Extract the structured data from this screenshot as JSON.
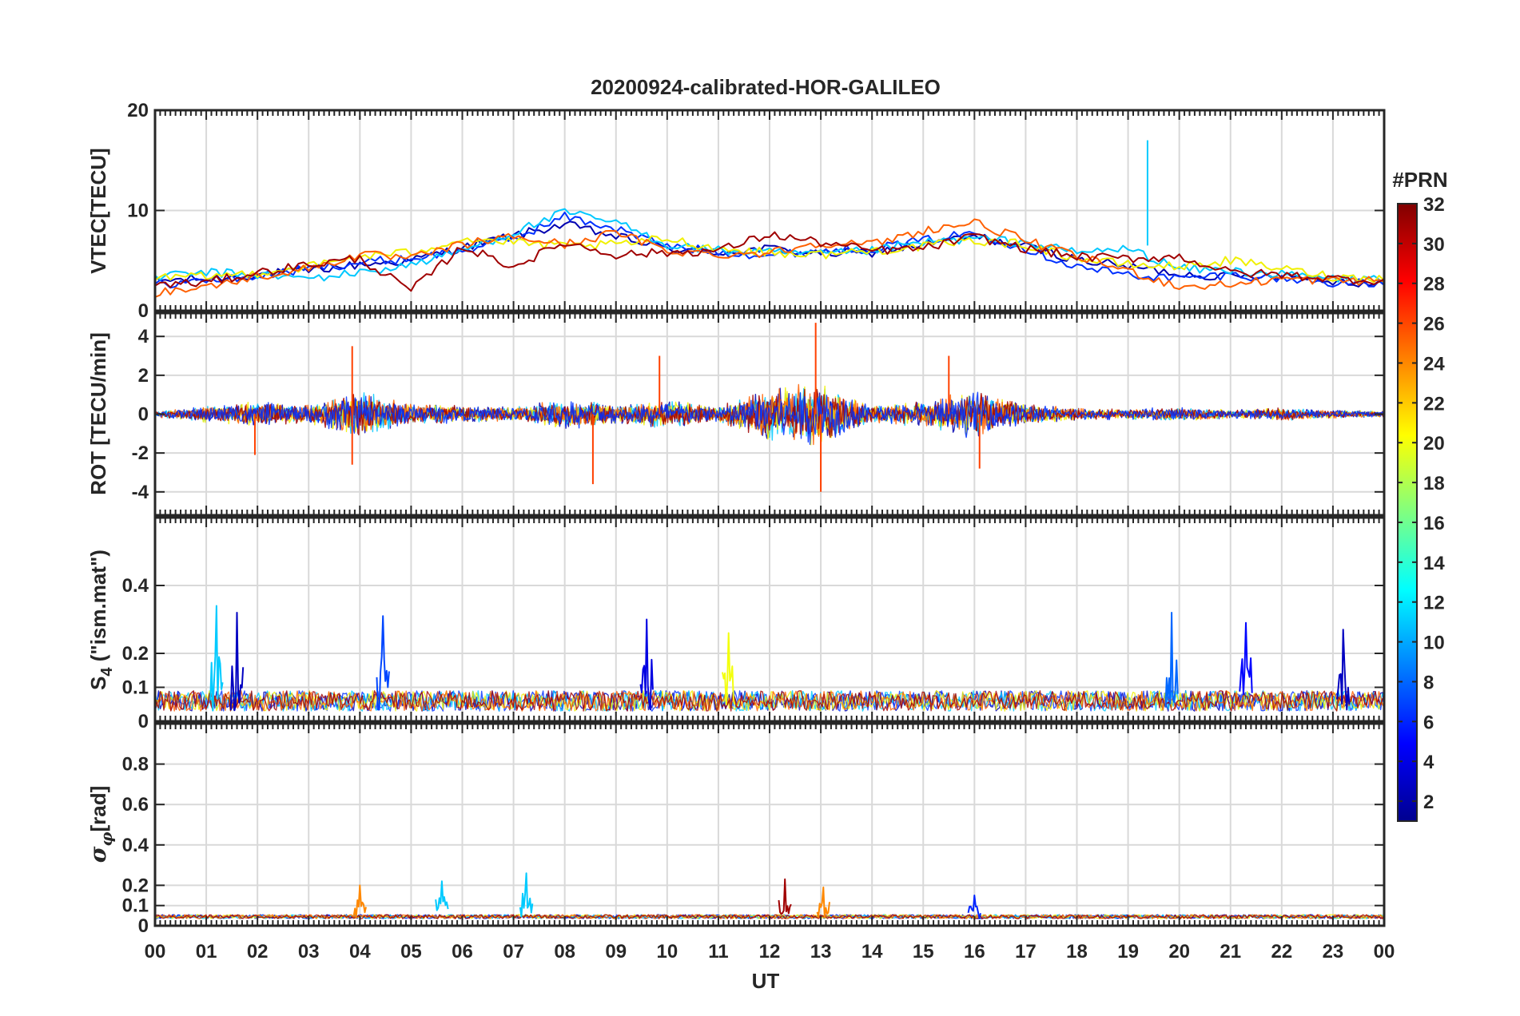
{
  "chart_data": {
    "type": "line",
    "title": "20200924-calibrated-HOR-GALILEO",
    "xlabel": "UT",
    "x_tick_labels": [
      "00",
      "01",
      "02",
      "03",
      "04",
      "05",
      "06",
      "07",
      "08",
      "09",
      "10",
      "11",
      "12",
      "13",
      "14",
      "15",
      "16",
      "17",
      "18",
      "19",
      "20",
      "21",
      "22",
      "23",
      "00"
    ],
    "xlim": [
      0,
      24
    ],
    "grid": true,
    "colorbar": {
      "title": "#PRN",
      "range": [
        1,
        32
      ],
      "tick_labels": [
        "2",
        "4",
        "6",
        "8",
        "10",
        "12",
        "14",
        "16",
        "18",
        "20",
        "22",
        "24",
        "26",
        "28",
        "30",
        "32"
      ],
      "colormap": "jet"
    },
    "panels": [
      {
        "ylabel": "VTEC[TECU]",
        "ylim": [
          0,
          20
        ],
        "yticks": [
          0,
          10,
          20
        ],
        "ytick_labels": [
          "0",
          "10",
          "20"
        ],
        "series": [
          {
            "prn": 2,
            "color": "#0000b0",
            "x": [
              0,
              1,
              2,
              3,
              4,
              5,
              6,
              7,
              8,
              9,
              10,
              11,
              12,
              13,
              14,
              15,
              16,
              17,
              18,
              19,
              20,
              21,
              22,
              23,
              24
            ],
            "y": [
              3.0,
              3.2,
              3.6,
              4.0,
              4.6,
              5.0,
              6.3,
              7.5,
              8.6,
              7.4,
              6.2,
              5.8,
              6.2,
              5.7,
              5.8,
              6.6,
              7.4,
              6.4,
              5.1,
              4.4,
              3.7,
              3.4,
              3.6,
              3.0,
              2.6
            ]
          },
          {
            "prn": 6,
            "color": "#0030ff",
            "x": [
              0,
              1,
              2,
              3,
              4,
              5,
              6,
              7,
              8,
              9,
              10,
              11,
              12,
              13,
              14,
              15,
              16,
              17,
              18,
              19,
              20,
              21,
              22,
              23,
              24
            ],
            "y": [
              2.6,
              3.0,
              3.4,
              4.2,
              4.8,
              5.2,
              6.0,
              7.2,
              9.4,
              8.2,
              6.4,
              5.9,
              5.5,
              6.0,
              6.2,
              7.0,
              7.8,
              6.2,
              4.4,
              3.6,
              3.2,
              3.6,
              3.2,
              2.8,
              2.6
            ]
          },
          {
            "prn": 11,
            "color": "#00c8ff",
            "x": [
              0,
              1,
              2,
              3,
              4,
              5,
              6,
              7,
              8,
              9,
              10,
              11,
              12,
              13,
              14,
              15,
              16,
              17,
              18,
              19,
              20,
              21,
              22,
              23,
              24
            ],
            "y": [
              3.4,
              3.8,
              3.6,
              3.2,
              3.8,
              4.6,
              6.0,
              7.8,
              9.8,
              8.8,
              6.6,
              6.0,
              5.8,
              5.6,
              6.0,
              6.8,
              7.2,
              6.8,
              5.8,
              6.2,
              4.2,
              4.0,
              3.6,
              3.2,
              3.2
            ]
          },
          {
            "prn": 20,
            "color": "#f0f000",
            "x": [
              0,
              1,
              2,
              3,
              4,
              5,
              6,
              7,
              8,
              9,
              10,
              11,
              12,
              13,
              14,
              15,
              16,
              17,
              18,
              19,
              20,
              21,
              22,
              23,
              24
            ],
            "y": [
              3.2,
              3.4,
              3.8,
              4.4,
              5.4,
              5.8,
              7.2,
              6.8,
              6.4,
              6.6,
              7.2,
              6.2,
              5.8,
              5.6,
              6.0,
              6.4,
              7.0,
              6.6,
              5.2,
              4.6,
              4.4,
              5.0,
              4.2,
              3.4,
              3.2
            ]
          },
          {
            "prn": 24,
            "color": "#ff6000",
            "x": [
              0,
              1,
              2,
              3,
              4,
              5,
              6,
              7,
              8,
              9,
              10,
              11,
              12,
              13,
              14,
              15,
              16,
              17,
              18,
              19,
              20,
              21,
              22,
              23,
              24
            ],
            "y": [
              1.8,
              2.4,
              3.4,
              4.2,
              5.6,
              5.2,
              6.6,
              7.4,
              6.6,
              7.8,
              6.0,
              5.6,
              5.8,
              6.8,
              6.6,
              8.0,
              8.8,
              7.0,
              5.4,
              4.0,
              2.4,
              2.6,
              3.2,
              3.0,
              3.0
            ]
          },
          {
            "prn": 31,
            "color": "#a00000",
            "x": [
              0,
              1,
              2,
              3,
              4,
              5,
              6,
              7,
              8,
              9,
              10,
              11,
              12,
              13,
              14,
              15,
              16,
              17,
              18,
              19,
              20,
              21,
              22,
              23,
              24
            ],
            "y": [
              2.6,
              2.8,
              3.8,
              4.6,
              5.2,
              2.0,
              6.4,
              4.4,
              6.8,
              5.6,
              5.8,
              6.0,
              7.6,
              6.8,
              6.0,
              6.2,
              7.4,
              6.2,
              5.4,
              5.2,
              5.4,
              3.8,
              3.6,
              3.2,
              3.0
            ]
          }
        ],
        "annotations": [
          {
            "note": "spike",
            "prn": 11,
            "x": 19.38,
            "y": 17.0
          }
        ]
      },
      {
        "ylabel": "ROT [TECU/min]",
        "ylim": [
          -5.2,
          5.2
        ],
        "yticks": [
          -4,
          -2,
          0,
          2,
          4
        ],
        "ytick_labels": [
          "-4",
          "-2",
          "0",
          "2",
          "4"
        ],
        "envelope": {
          "x": [
            0,
            1,
            2,
            3,
            4,
            5,
            6,
            7,
            8,
            9,
            10,
            11,
            12,
            13,
            14,
            15,
            16,
            17,
            18,
            19,
            20,
            21,
            22,
            23,
            24
          ],
          "amplitude": [
            0.3,
            0.8,
            1.2,
            0.9,
            2.2,
            1.0,
            0.9,
            0.7,
            1.5,
            0.9,
            1.4,
            0.8,
            2.6,
            3.2,
            0.9,
            1.2,
            2.4,
            1.0,
            0.6,
            0.5,
            0.7,
            0.4,
            0.6,
            0.4,
            0.3
          ]
        },
        "peaks": [
          {
            "x": 3.85,
            "y": 3.5
          },
          {
            "x": 3.85,
            "y": -2.6
          },
          {
            "x": 1.95,
            "y": -2.1
          },
          {
            "x": 8.55,
            "y": -3.6
          },
          {
            "x": 9.85,
            "y": 3.0
          },
          {
            "x": 12.9,
            "y": 4.7
          },
          {
            "x": 13.0,
            "y": -4.0
          },
          {
            "x": 16.1,
            "y": -2.8
          },
          {
            "x": 15.5,
            "y": 3.0
          }
        ]
      },
      {
        "ylabel": "S4 (\"ism.mat\")",
        "ylabel_main": "S",
        "ylabel_sub": "4",
        "ylabel_rest": " (\"ism.mat\")",
        "ylim": [
          0,
          0.6
        ],
        "yticks": [
          0,
          0.1,
          0.2,
          0.4
        ],
        "ytick_labels": [
          "0",
          "0.1",
          "0.2",
          "0.4"
        ],
        "peaks": [
          {
            "x": 1.2,
            "y": 0.34,
            "prn": 11
          },
          {
            "x": 1.6,
            "y": 0.32,
            "prn": 3
          },
          {
            "x": 4.45,
            "y": 0.31,
            "prn": 7
          },
          {
            "x": 9.6,
            "y": 0.3,
            "prn": 4
          },
          {
            "x": 11.2,
            "y": 0.26,
            "prn": 20
          },
          {
            "x": 19.85,
            "y": 0.32,
            "prn": 8
          },
          {
            "x": 21.3,
            "y": 0.29,
            "prn": 5
          },
          {
            "x": 23.2,
            "y": 0.27,
            "prn": 3
          }
        ]
      },
      {
        "ylabel": "σφ[rad]",
        "ylabel_main": "σ",
        "ylabel_sub": "φ",
        "ylabel_rest": "[rad]",
        "ylim": [
          0,
          1
        ],
        "yticks": [
          0,
          0.1,
          0.2,
          0.4,
          0.6,
          0.8
        ],
        "ytick_labels": [
          "0",
          "0.1",
          "0.2",
          "0.4",
          "0.6",
          "0.8"
        ],
        "peaks": [
          {
            "x": 4.0,
            "y": 0.2,
            "prn": 24
          },
          {
            "x": 5.6,
            "y": 0.22,
            "prn": 11
          },
          {
            "x": 7.25,
            "y": 0.26,
            "prn": 11
          },
          {
            "x": 12.3,
            "y": 0.23,
            "prn": 31
          },
          {
            "x": 13.05,
            "y": 0.19,
            "prn": 24
          },
          {
            "x": 16.0,
            "y": 0.15,
            "prn": 6
          }
        ]
      }
    ]
  }
}
